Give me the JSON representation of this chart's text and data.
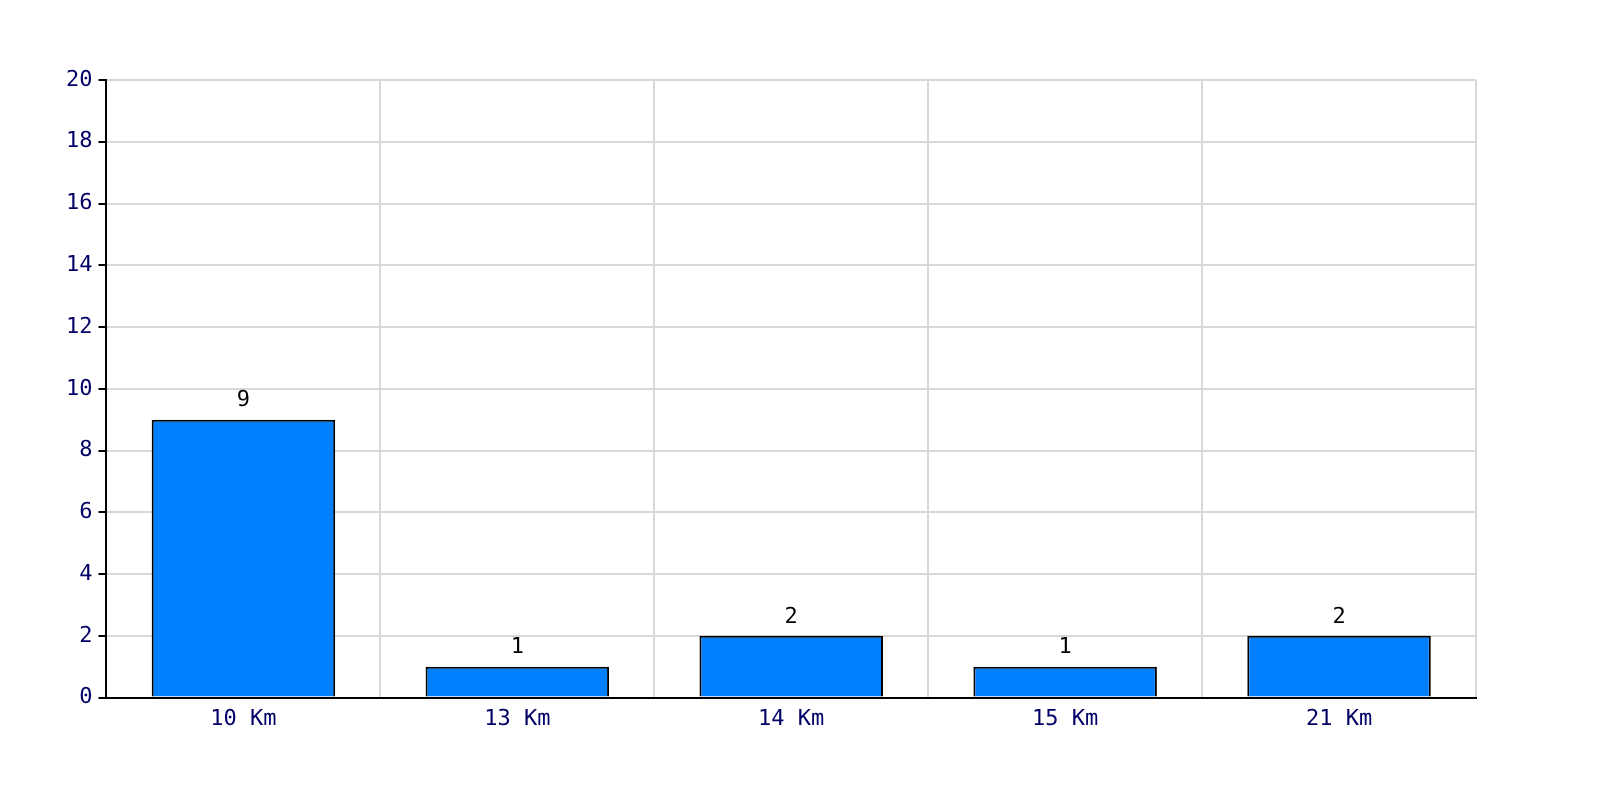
{
  "chart_data": {
    "type": "bar",
    "categories": [
      "10 Km",
      "13 Km",
      "14 Km",
      "15 Km",
      "21 Km"
    ],
    "values": [
      9,
      1,
      2,
      1,
      2
    ],
    "color": "#0080ff",
    "ylim": [
      0,
      20
    ],
    "yticks": [
      0,
      2,
      4,
      6,
      8,
      10,
      12,
      14,
      16,
      18,
      20
    ],
    "grid": true,
    "data_labels": true,
    "legend": false
  }
}
